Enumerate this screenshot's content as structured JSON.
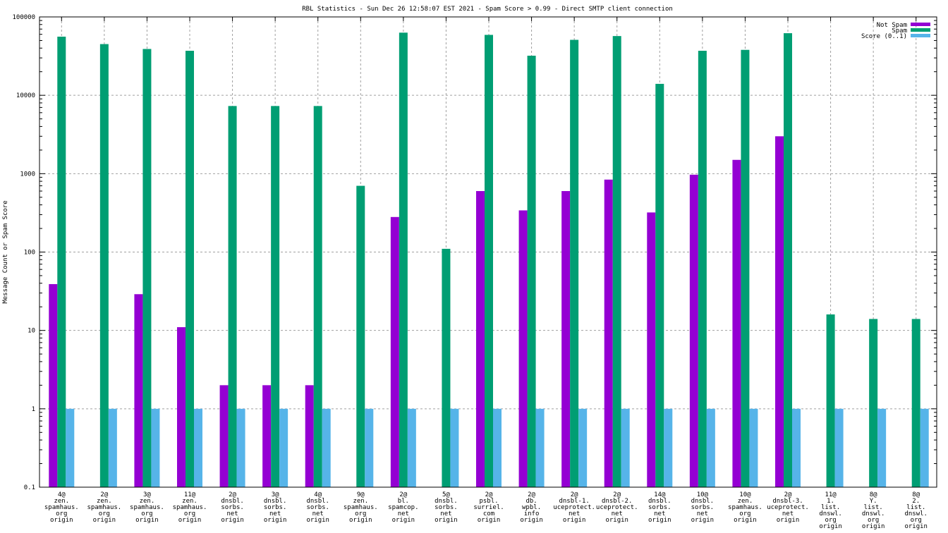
{
  "chart_data": {
    "type": "bar",
    "title": "RBL Statistics - Sun Dec 26 12:58:07 EST 2021 - Spam Score > 0.99 - Direct SMTP client connection",
    "xlabel": "",
    "ylabel": "Message Count or Spam Score",
    "yscale": "log",
    "ylim": [
      0.1,
      100000
    ],
    "yticks": [
      "0.1",
      "1",
      "10",
      "100",
      "1000",
      "10000",
      "100000"
    ],
    "ytick_values": [
      0.1,
      1,
      10,
      100,
      1000,
      10000,
      100000
    ],
    "grid": true,
    "legend_position": "top-right",
    "categories": [
      [
        "4@",
        "zen.",
        "spamhaus.",
        "org",
        "origin"
      ],
      [
        "2@",
        "zen.",
        "spamhaus.",
        "org",
        "origin"
      ],
      [
        "3@",
        "zen.",
        "spamhaus.",
        "org",
        "origin"
      ],
      [
        "11@",
        "zen.",
        "spamhaus.",
        "org",
        "origin"
      ],
      [
        "2@",
        "dnsbl.",
        "sorbs.",
        "net",
        "origin"
      ],
      [
        "3@",
        "dnsbl.",
        "sorbs.",
        "net",
        "origin"
      ],
      [
        "4@",
        "dnsbl.",
        "sorbs.",
        "net",
        "origin"
      ],
      [
        "9@",
        "zen.",
        "spamhaus.",
        "org",
        "origin"
      ],
      [
        "2@",
        "bl.",
        "spamcop.",
        "net",
        "origin"
      ],
      [
        "5@",
        "dnsbl.",
        "sorbs.",
        "net",
        "origin"
      ],
      [
        "2@",
        "psbl.",
        "surriel.",
        "com",
        "origin"
      ],
      [
        "2@",
        "db.",
        "wpbl.",
        "info",
        "origin"
      ],
      [
        "2@",
        "dnsbl-1.",
        "uceprotect.",
        "net",
        "origin"
      ],
      [
        "2@",
        "dnsbl-2.",
        "uceprotect.",
        "net",
        "origin"
      ],
      [
        "14@",
        "dnsbl.",
        "sorbs.",
        "net",
        "origin"
      ],
      [
        "10@",
        "dnsbl.",
        "sorbs.",
        "net",
        "origin"
      ],
      [
        "10@",
        "zen.",
        "spamhaus.",
        "org",
        "origin"
      ],
      [
        "2@",
        "dnsbl-3.",
        "uceprotect.",
        "net",
        "origin"
      ],
      [
        "11@",
        "1.",
        "list.",
        "dnswl.",
        "org",
        "origin"
      ],
      [
        "8@",
        "Y.",
        "list.",
        "dnswl.",
        "org",
        "origin"
      ],
      [
        "8@",
        "2.",
        "list.",
        "dnswl.",
        "org",
        "origin"
      ]
    ],
    "series": [
      {
        "name": "Not Spam",
        "color": "#9400d3",
        "values": [
          39,
          null,
          29,
          11,
          2,
          2,
          2,
          null,
          280,
          null,
          600,
          340,
          600,
          840,
          320,
          970,
          1500,
          3000,
          null,
          null,
          null
        ]
      },
      {
        "name": "Spam",
        "color": "#009e73",
        "values": [
          56000,
          45000,
          39000,
          37000,
          7300,
          7300,
          7300,
          700,
          63000,
          110,
          59000,
          32000,
          51000,
          57000,
          14000,
          37000,
          38000,
          62000,
          16,
          14,
          14
        ]
      },
      {
        "name": "Score (0..1)",
        "color": "#56b4e9",
        "values": [
          1,
          1,
          1,
          1,
          1,
          1,
          1,
          1,
          1,
          1,
          1,
          1,
          1,
          1,
          1,
          1,
          1,
          1,
          1,
          1,
          1
        ]
      }
    ]
  }
}
